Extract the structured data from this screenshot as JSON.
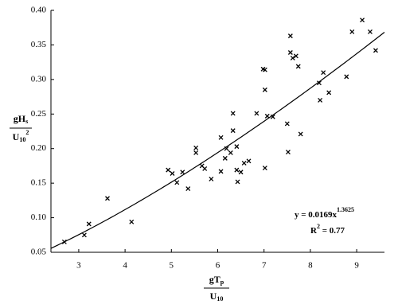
{
  "chart_data": {
    "type": "scatter",
    "xlabel": {
      "numerator": "gT",
      "numerator_sub": "p",
      "denominator": "U",
      "denominator_sub": "10"
    },
    "ylabel": {
      "numerator": "gH",
      "numerator_sub": "s",
      "denominator": "U",
      "denominator_sub": "10",
      "denominator_sup": "2"
    },
    "annotations": {
      "equation": "y = 0.0169x",
      "equation_exponent": "1.3625",
      "r_squared": "R",
      "r_squared_sup": "2",
      "r_squared_value": " = 0.77"
    },
    "fit": {
      "coefficient": 0.0169,
      "exponent": 1.3625
    },
    "x": [
      2.69,
      3.12,
      3.22,
      3.62,
      4.14,
      4.93,
      5.02,
      5.12,
      5.24,
      5.36,
      5.53,
      5.53,
      5.66,
      5.72,
      5.86,
      6.07,
      6.07,
      6.16,
      6.19,
      6.28,
      6.33,
      6.33,
      6.41,
      6.41,
      6.43,
      6.5,
      6.57,
      6.67,
      6.84,
      6.98,
      7.02,
      7.02,
      7.02,
      7.07,
      7.19,
      7.5,
      7.52,
      7.57,
      7.57,
      7.62,
      7.69,
      7.74,
      7.79,
      8.19,
      8.21,
      8.28,
      8.4,
      8.78,
      8.9,
      9.12,
      9.29,
      9.41
    ],
    "values": [
      0.065,
      0.075,
      0.091,
      0.128,
      0.094,
      0.169,
      0.164,
      0.151,
      0.166,
      0.142,
      0.201,
      0.194,
      0.175,
      0.171,
      0.156,
      0.216,
      0.167,
      0.186,
      0.2,
      0.194,
      0.251,
      0.226,
      0.203,
      0.169,
      0.152,
      0.166,
      0.179,
      0.182,
      0.251,
      0.315,
      0.314,
      0.285,
      0.172,
      0.247,
      0.246,
      0.236,
      0.195,
      0.363,
      0.339,
      0.331,
      0.334,
      0.319,
      0.221,
      0.295,
      0.27,
      0.31,
      0.281,
      0.304,
      0.369,
      0.386,
      0.369,
      0.342
    ],
    "color": "#000000",
    "fit_color": "#000000",
    "xlim": [
      2.4,
      9.6
    ],
    "ylim": [
      0.05,
      0.4
    ],
    "xticks": [
      3,
      4,
      5,
      6,
      7,
      8,
      9
    ],
    "yticks": [
      0.05,
      {
        "value": 0.1,
        "label": "0.10"
      },
      0.15,
      {
        "value": 0.2,
        "label": "0.20"
      },
      0.25,
      {
        "value": 0.3,
        "label": "0.30"
      },
      0.35,
      {
        "value": 0.4,
        "label": "0.40"
      }
    ],
    "grid": false
  }
}
